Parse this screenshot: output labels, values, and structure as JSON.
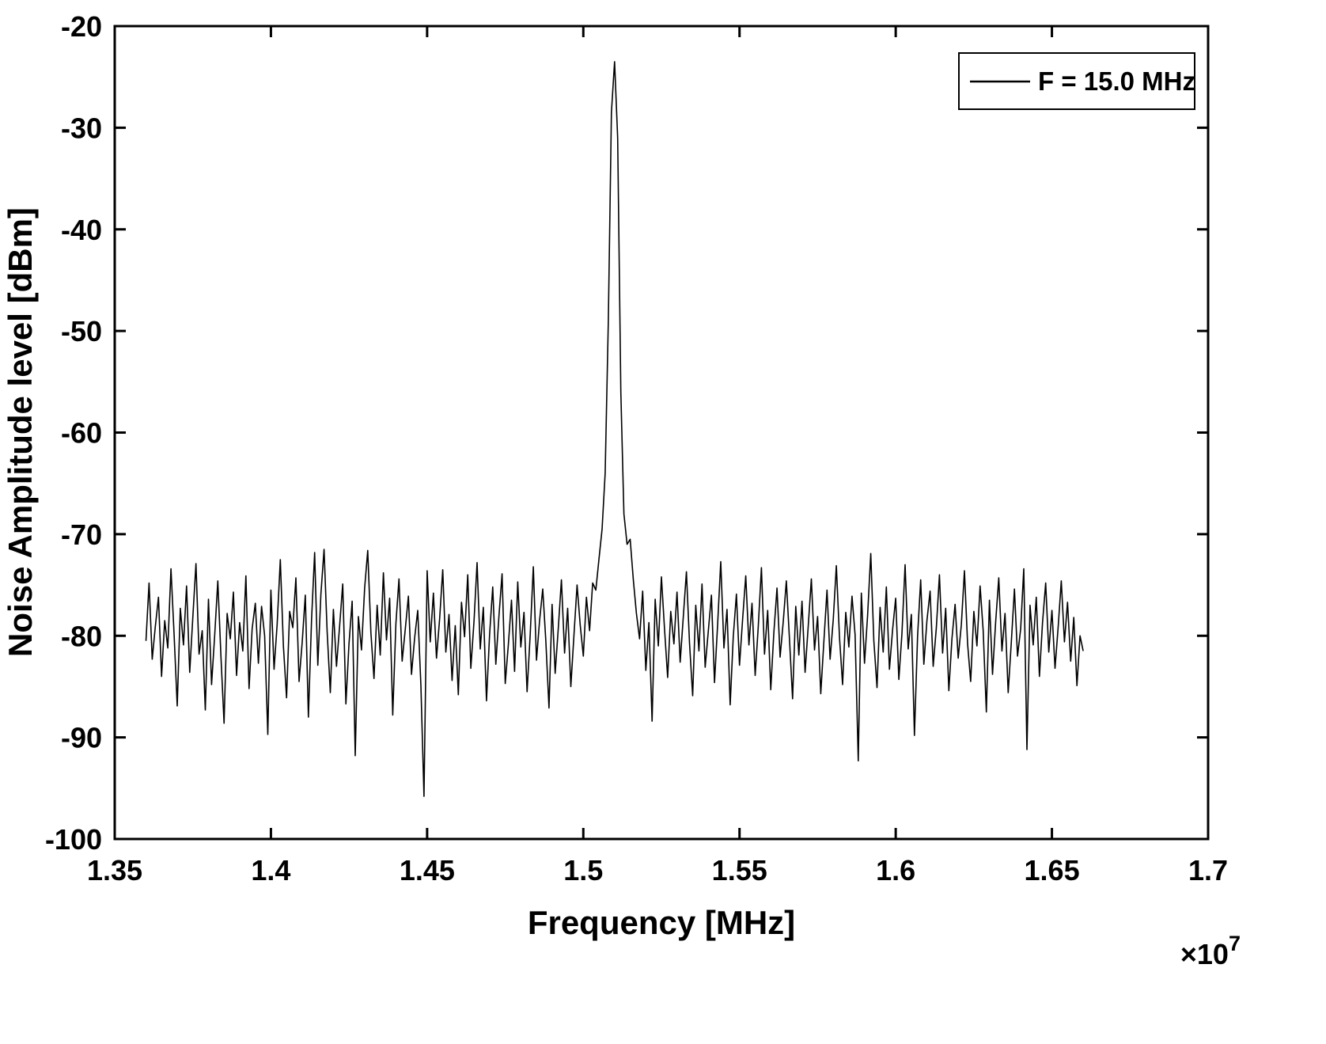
{
  "figure": {
    "background": "#ffffff",
    "line_color": "#000000",
    "text_color": "#000000"
  },
  "chart_data": {
    "type": "line",
    "title": "",
    "xlabel": "Frequency [MHz]",
    "ylabel": "Noise Amplitude level [dBm]",
    "grid": false,
    "legend_position": "top-right",
    "xlim": [
      13500000,
      17000000
    ],
    "ylim": [
      -100,
      -20
    ],
    "x_ticks": [
      13500000,
      14000000,
      14500000,
      15000000,
      15500000,
      16000000,
      16500000,
      17000000
    ],
    "x_tick_labels": [
      "1.35",
      "1.4",
      "1.45",
      "1.5",
      "1.55",
      "1.6",
      "1.65",
      "1.7"
    ],
    "y_ticks": [
      -100,
      -90,
      -80,
      -70,
      -60,
      -50,
      -40,
      -30,
      -20
    ],
    "y_tick_labels": [
      "-100",
      "-90",
      "-80",
      "-70",
      "-60",
      "-50",
      "-40",
      "-30",
      "-20"
    ],
    "x_offset_label": {
      "base": "×10",
      "exponent": "7"
    },
    "series": [
      {
        "name": "F = 15.0 MHz",
        "color": "#000000",
        "x_start": 13600000,
        "x_step": 10000,
        "peak": {
          "x": 15100000,
          "y": -23.5
        },
        "noise_floor_mean_dbm": -80,
        "y_values": [
          -80.5,
          -74.8,
          -82.3,
          -79.1,
          -76.2,
          -84.0,
          -78.5,
          -81.2,
          -73.4,
          -79.8,
          -86.9,
          -77.3,
          -80.9,
          -75.1,
          -83.6,
          -78.2,
          -72.9,
          -81.8,
          -79.5,
          -87.3,
          -76.4,
          -84.8,
          -79.9,
          -74.6,
          -82.1,
          -88.6,
          -77.8,
          -80.3,
          -75.7,
          -83.9,
          -78.7,
          -81.5,
          -74.1,
          -85.2,
          -79.3,
          -76.8,
          -82.7,
          -77.1,
          -80.0,
          -89.7,
          -75.5,
          -83.3,
          -78.9,
          -72.5,
          -81.0,
          -86.1,
          -77.6,
          -79.2,
          -74.3,
          -84.5,
          -80.7,
          -76.0,
          -88.0,
          -78.4,
          -71.8,
          -82.9,
          -75.9,
          -71.5,
          -79.6,
          -85.6,
          -77.4,
          -83.0,
          -79.0,
          -74.9,
          -86.7,
          -80.8,
          -76.6,
          -91.8,
          -78.1,
          -81.4,
          -75.3,
          -71.6,
          -79.7,
          -84.2,
          -77.0,
          -81.9,
          -73.8,
          -80.4,
          -76.3,
          -87.8,
          -78.8,
          -74.4,
          -82.5,
          -79.4,
          -76.1,
          -83.8,
          -80.2,
          -77.5,
          -84.9,
          -95.8,
          -73.6,
          -80.6,
          -75.8,
          -82.2,
          -78.3,
          -73.5,
          -81.6,
          -77.9,
          -84.4,
          -79.0,
          -85.8,
          -76.7,
          -80.1,
          -74.0,
          -83.2,
          -78.6,
          -72.8,
          -81.3,
          -77.2,
          -86.4,
          -79.9,
          -75.2,
          -82.8,
          -78.0,
          -73.9,
          -84.7,
          -80.9,
          -76.5,
          -83.5,
          -74.7,
          -81.1,
          -77.7,
          -85.5,
          -79.8,
          -73.2,
          -82.4,
          -78.5,
          -75.4,
          -80.5,
          -87.1,
          -76.9,
          -83.7,
          -79.2,
          -74.5,
          -81.7,
          -77.3,
          -85.0,
          -80.0,
          -75.0,
          -78.9,
          -82.0,
          -76.2,
          -79.5,
          -74.8,
          -75.5,
          -72.5,
          -69.5,
          -64.0,
          -49.0,
          -28.5,
          -23.5,
          -31.0,
          -56.0,
          -68.0,
          -71.0,
          -70.5,
          -74.5,
          -77.8,
          -80.3,
          -75.6,
          -83.4,
          -78.7,
          -88.4,
          -76.4,
          -81.0,
          -74.2,
          -79.3,
          -84.1,
          -77.6,
          -80.8,
          -75.7,
          -82.6,
          -78.2,
          -73.7,
          -80.7,
          -85.9,
          -77.0,
          -81.5,
          -74.9,
          -83.1,
          -79.6,
          -76.0,
          -84.6,
          -78.8,
          -72.7,
          -81.2,
          -77.4,
          -86.8,
          -80.1,
          -75.9,
          -82.9,
          -78.3,
          -74.1,
          -80.9,
          -76.8,
          -83.9,
          -79.1,
          -73.3,
          -81.8,
          -77.5,
          -85.3,
          -79.7,
          -75.3,
          -82.1,
          -78.6,
          -74.6,
          -80.4,
          -86.2,
          -77.1,
          -81.9,
          -76.6,
          -83.6,
          -79.0,
          -74.4,
          -81.4,
          -78.1,
          -85.7,
          -80.6,
          -75.5,
          -82.3,
          -78.4,
          -73.1,
          -80.2,
          -84.8,
          -77.7,
          -81.1,
          -76.1,
          -79.9,
          -92.3,
          -75.8,
          -82.7,
          -78.0,
          -71.9,
          -80.5,
          -85.1,
          -77.2,
          -81.6,
          -75.2,
          -83.3,
          -79.4,
          -76.3,
          -84.3,
          -79.8,
          -73.0,
          -81.3,
          -77.9,
          -89.8,
          -80.0,
          -74.5,
          -82.8,
          -78.5,
          -75.6,
          -83.0,
          -79.2,
          -74.0,
          -81.7,
          -77.3,
          -85.4,
          -80.3,
          -76.9,
          -82.2,
          -78.9,
          -73.6,
          -80.8,
          -84.5,
          -77.6,
          -81.0,
          -75.1,
          -79.5,
          -87.5,
          -76.5,
          -83.8,
          -78.6,
          -74.3,
          -81.5,
          -77.8,
          -85.6,
          -80.7,
          -75.4,
          -82.0,
          -79.3,
          -73.4,
          -91.2,
          -77.0,
          -80.9,
          -76.2,
          -84.0,
          -78.7,
          -74.8,
          -81.6,
          -77.5,
          -83.2,
          -79.1,
          -74.6,
          -80.6,
          -76.7,
          -82.5,
          -78.2,
          -84.9,
          -80.0,
          -81.5
        ]
      }
    ]
  }
}
